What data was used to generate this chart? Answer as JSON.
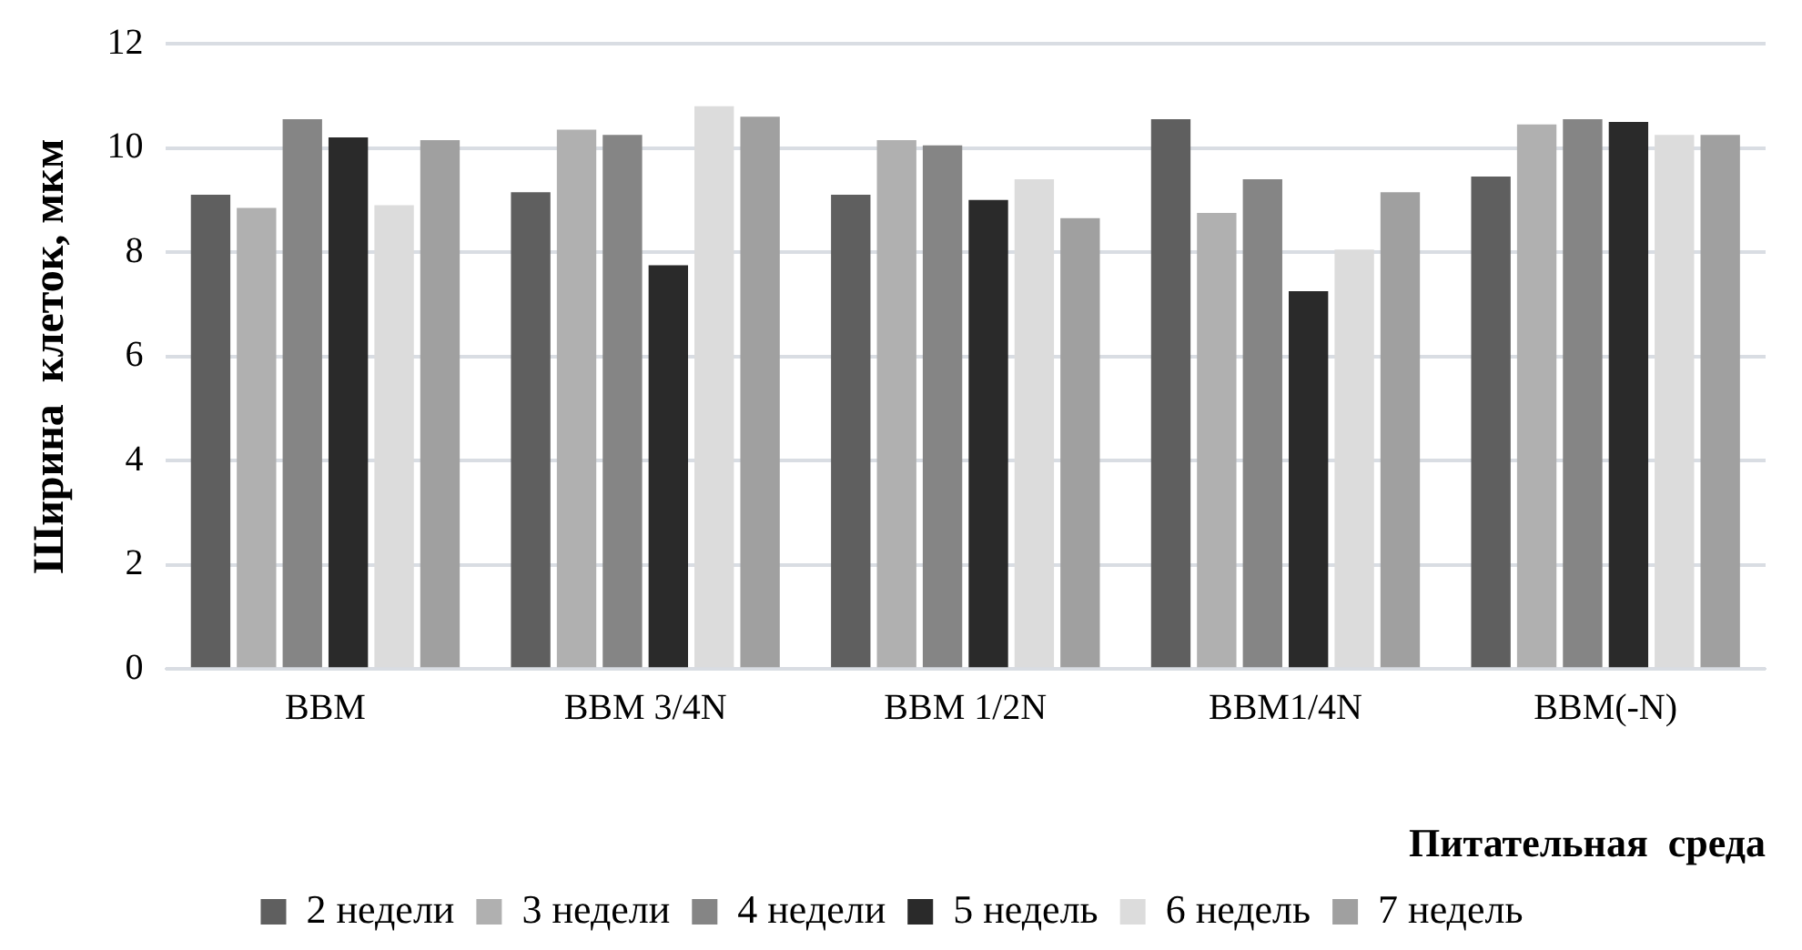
{
  "chart_data": {
    "type": "bar",
    "ylabel": "Ширина  клеток, мкм",
    "xlabel": "Питательная  среда",
    "categories": [
      "BBM",
      "BBM 3/4N",
      "BBM 1/2N",
      "BBM1/4N",
      "BBM(-N)"
    ],
    "series": [
      {
        "name": "2 недели",
        "color": "#5f5f5f",
        "values": [
          9.1,
          9.15,
          9.1,
          10.55,
          9.45
        ]
      },
      {
        "name": "3 недели",
        "color": "#b0b0b0",
        "values": [
          8.85,
          10.35,
          10.15,
          8.75,
          10.45
        ]
      },
      {
        "name": "4 недели",
        "color": "#858585",
        "values": [
          10.55,
          10.25,
          10.05,
          9.4,
          10.55
        ]
      },
      {
        "name": "5 недель",
        "color": "#2a2a2a",
        "values": [
          10.2,
          7.75,
          9.0,
          7.25,
          10.5
        ]
      },
      {
        "name": "6 недель",
        "color": "#dcdcdc",
        "values": [
          8.9,
          10.8,
          9.4,
          8.05,
          10.25
        ]
      },
      {
        "name": "7 недель",
        "color": "#a0a0a0",
        "values": [
          10.15,
          10.6,
          8.65,
          9.15,
          10.25
        ]
      }
    ],
    "ylim": [
      0,
      12
    ],
    "yticks": [
      0,
      2,
      4,
      6,
      8,
      10,
      12
    ],
    "grid": "y",
    "legend": "bottom"
  }
}
